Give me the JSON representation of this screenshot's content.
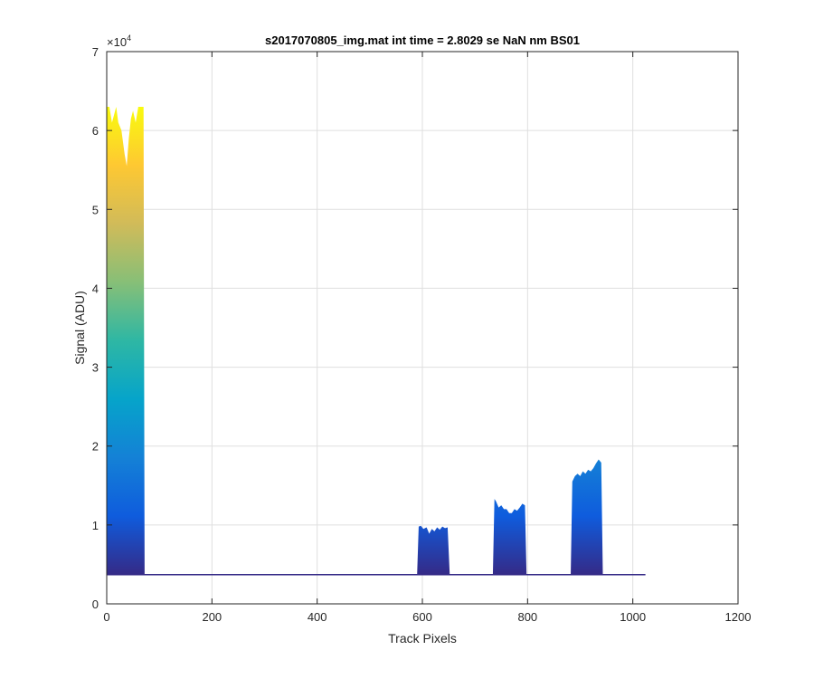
{
  "chart_data": {
    "type": "area",
    "title": "s2017070805_img.mat int time = 2.8029 se  NaN nm BS01",
    "xlabel": "Track Pixels",
    "ylabel": "Signal (ADU)",
    "xlim": [
      0,
      1200
    ],
    "ylim": [
      0,
      70000
    ],
    "y_exponent_label": "×10",
    "y_exponent_power": "4",
    "x_ticks": [
      0,
      200,
      400,
      600,
      800,
      1000,
      1200
    ],
    "x_tick_labels": [
      "0",
      "200",
      "400",
      "600",
      "800",
      "1000",
      "1200"
    ],
    "y_ticks": [
      0,
      10000,
      20000,
      30000,
      40000,
      50000,
      60000,
      70000
    ],
    "y_tick_labels": [
      "0",
      "1",
      "2",
      "3",
      "4",
      "5",
      "6",
      "7"
    ],
    "grid": true,
    "baseline": 3700,
    "series_extent_x": [
      0,
      1024
    ],
    "colormap": [
      "#352a87",
      "#0f5cdd",
      "#1481d6",
      "#06a4ca",
      "#2eb7a4",
      "#87bf77",
      "#d1bb59",
      "#fec832",
      "#f9fb0e"
    ],
    "colormap_stops": [
      0,
      0.125,
      0.25,
      0.375,
      0.5,
      0.625,
      0.75,
      0.875,
      1
    ],
    "peaks": [
      {
        "x": [
          0,
          5,
          10,
          18,
          22,
          28,
          34,
          38,
          42,
          46,
          50,
          55,
          60,
          65,
          70,
          72
        ],
        "y": [
          63000,
          63000,
          61000,
          63000,
          61000,
          60000,
          57000,
          55500,
          59000,
          61500,
          62500,
          61000,
          63000,
          63000,
          63000,
          3700
        ]
      },
      {
        "x": [
          590,
          593,
          597,
          602,
          608,
          613,
          618,
          623,
          628,
          633,
          638,
          643,
          648,
          652
        ],
        "y": [
          3700,
          9800,
          9900,
          9500,
          9700,
          8900,
          9500,
          9200,
          9700,
          9400,
          9800,
          9600,
          9700,
          3700
        ]
      },
      {
        "x": [
          734,
          737,
          740,
          745,
          750,
          755,
          760,
          765,
          770,
          775,
          780,
          785,
          790,
          795,
          798
        ],
        "y": [
          3700,
          13300,
          13000,
          12200,
          12500,
          12000,
          12000,
          11500,
          11500,
          12000,
          11800,
          12200,
          12700,
          12500,
          3700
        ]
      },
      {
        "x": [
          882,
          885,
          890,
          895,
          900,
          905,
          910,
          915,
          920,
          925,
          930,
          935,
          940,
          943
        ],
        "y": [
          3700,
          15500,
          16200,
          16500,
          16200,
          16800,
          16500,
          17000,
          16800,
          17200,
          17800,
          18300,
          17900,
          3700
        ]
      }
    ]
  }
}
